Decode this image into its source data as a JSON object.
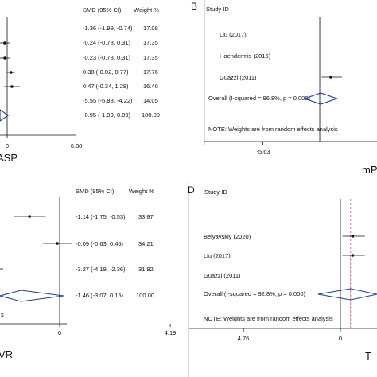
{
  "chart_data": [
    {
      "type": "forest",
      "panel": "A",
      "header_stat": "SMD (95% CI)",
      "header_weight": "Weight %",
      "xlabel": "ASP",
      "tick_labels": [
        "0",
        "6.88"
      ],
      "xlim": [
        -6.88,
        6.88
      ],
      "rows": [
        {
          "ci": "-1.36 (-1.99, -0.74)",
          "weight": "17.08",
          "est": -1.36,
          "lo": -1.99,
          "hi": -0.74
        },
        {
          "ci": "-0.24 (-0.78, 0.31)",
          "weight": "17.35",
          "est": -0.24,
          "lo": -0.78,
          "hi": 0.31
        },
        {
          "ci": "-0.23 (-0.78, 0.31)",
          "weight": "17.35",
          "est": -0.23,
          "lo": -0.78,
          "hi": 0.31
        },
        {
          "ci": "0.38 (-0.02, 0.77)",
          "weight": "17.76",
          "est": 0.38,
          "lo": -0.02,
          "hi": 0.77
        },
        {
          "ci": "0.47 (-0.34, 1.28)",
          "weight": "16.40",
          "est": 0.47,
          "lo": -0.34,
          "hi": 1.28
        },
        {
          "ci": "-5.55 (-6.88, -4.22)",
          "weight": "14.05",
          "est": -5.55,
          "lo": -6.88,
          "hi": -4.22
        },
        {
          "ci": "-0.95 (-1.99, 0.09)",
          "weight": "100.00",
          "est": -0.95,
          "lo": -1.99,
          "hi": 0.09,
          "overall": true
        }
      ]
    },
    {
      "type": "forest",
      "panel": "B",
      "study_header": "Study ID",
      "xlabel": "mP",
      "tick_labels": [
        "-5.63"
      ],
      "xlim": [
        -5.63,
        5.63
      ],
      "note": "NOTE: Weights are from random effects analysis",
      "rows": [
        {
          "label": "Liu (2017)"
        },
        {
          "label": "Hoendermis (2015)"
        },
        {
          "label": "Guazzi (2011)",
          "est": 1.1,
          "lo": 0.2,
          "hi": 2.2
        },
        {
          "label": "Overall  (I-squared = 96.8%, p = 0.000)",
          "overall": true
        }
      ]
    },
    {
      "type": "forest",
      "panel": "C",
      "header_stat": "SMD (95% CI)",
      "header_weight": "Weight %",
      "xlabel": "VR",
      "tick_labels": [
        "0",
        "4.19"
      ],
      "xlim": [
        -4.19,
        4.19
      ],
      "rows": [
        {
          "ci": "-1.14 (-1.75, -0.53)",
          "weight": "33.87",
          "est": -1.14,
          "lo": -1.75,
          "hi": -0.53
        },
        {
          "ci": "-0.09 (-0.63, 0.46)",
          "weight": "34.21",
          "est": -0.09,
          "lo": -0.63,
          "hi": 0.46
        },
        {
          "ci": "-3.27 (-4.19, -2.36)",
          "weight": "31.92",
          "est": -3.27,
          "lo": -4.19,
          "hi": -2.36
        },
        {
          "ci": "-1.46 (-3.07, 0.15)",
          "weight": "100.00",
          "est": -1.46,
          "lo": -3.07,
          "hi": 0.15,
          "overall": true
        }
      ]
    },
    {
      "type": "forest",
      "panel": "D",
      "study_header": "Study ID",
      "xlabel": "T",
      "tick_labels": [
        "4.76",
        "0"
      ],
      "xlim": [
        -4.76,
        4.76
      ],
      "note": "NOTE: Weights are from random effects analysis",
      "rows": [
        {
          "label": "Belyavskiy (2020)",
          "est": 0.6,
          "lo": 0.1,
          "hi": 1.2
        },
        {
          "label": "Liu (2017)",
          "est": 0.6,
          "lo": 0.1,
          "hi": 1.2
        },
        {
          "label": "Guazzi (2011)"
        },
        {
          "label": "Overall  (I-squared = 92.8%, p = 0.000)",
          "overall": true
        }
      ]
    }
  ]
}
